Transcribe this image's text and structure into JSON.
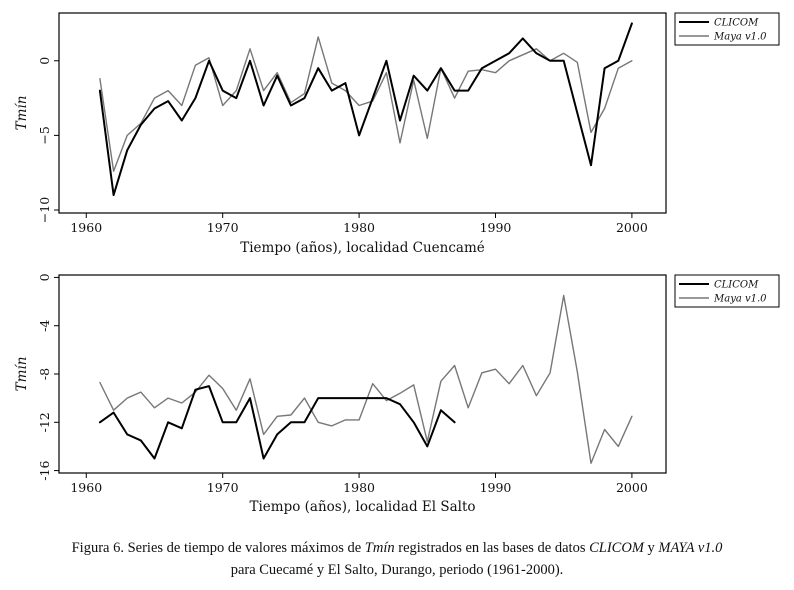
{
  "chart_data": [
    {
      "type": "line",
      "xlabel": "Tiempo (años), localidad Cuencamé",
      "ylabel": "Tmín",
      "xlim": [
        1958,
        2002.5
      ],
      "ylim": [
        -10.2,
        3.2
      ],
      "xticks": [
        1960,
        1970,
        1980,
        1990,
        2000
      ],
      "yticks": [
        -10,
        -5,
        0
      ],
      "ytick_labels": [
        "−10",
        "−5",
        "0"
      ],
      "legend_position": "top-right",
      "grid": false,
      "x": [
        1961,
        1962,
        1963,
        1964,
        1965,
        1966,
        1967,
        1968,
        1969,
        1970,
        1971,
        1972,
        1973,
        1974,
        1975,
        1976,
        1977,
        1978,
        1979,
        1980,
        1981,
        1982,
        1983,
        1984,
        1985,
        1986,
        1987,
        1988,
        1989,
        1990,
        1991,
        1992,
        1993,
        1994,
        1995,
        1996,
        1997,
        1998,
        1999,
        2000
      ],
      "series": [
        {
          "name": "CLICOM",
          "color": "#000000",
          "width": 2,
          "values": [
            -2,
            -9,
            -6,
            -4.3,
            -3.2,
            -2.7,
            -4,
            -2.5,
            0,
            -2,
            -2.5,
            0,
            -3,
            -1,
            -3,
            -2.5,
            -0.5,
            -2,
            -1.5,
            -5,
            -2.5,
            0,
            -4,
            -1,
            -2,
            -0.5,
            -2,
            -2,
            -0.5,
            0,
            0.5,
            1.5,
            0.5,
            0,
            0,
            -3.5,
            -7,
            -0.5,
            0,
            2.5
          ]
        },
        {
          "name": "Maya v1.0",
          "color": "#777777",
          "width": 1.4,
          "values": [
            -1.2,
            -7.4,
            -5,
            -4.2,
            -2.5,
            -2,
            -3,
            -0.3,
            0.2,
            -3,
            -2,
            0.8,
            -2,
            -0.8,
            -2.8,
            -2.2,
            1.6,
            -1.5,
            -2,
            -3,
            -2.7,
            -0.8,
            -5.5,
            -1.3,
            -5.2,
            -0.5,
            -2.5,
            -0.7,
            -0.6,
            -0.8,
            0,
            0.4,
            0.8,
            0,
            0.5,
            -0.1,
            -4.8,
            -3.2,
            -0.5,
            0
          ]
        }
      ]
    },
    {
      "type": "line",
      "xlabel": "Tiempo (años), localidad El Salto",
      "ylabel": "Tmín",
      "xlim": [
        1958,
        2002.5
      ],
      "ylim": [
        -16.2,
        0.2
      ],
      "xticks": [
        1960,
        1970,
        1980,
        1990,
        2000
      ],
      "yticks": [
        -16,
        -12,
        -8,
        -4,
        0
      ],
      "ytick_labels": [
        "-16",
        "-12",
        "-8",
        "-4",
        "0"
      ],
      "legend_position": "top-right",
      "grid": false,
      "series": [
        {
          "name": "CLICOM",
          "color": "#000000",
          "width": 2,
          "x": [
            1961,
            1962,
            1963,
            1964,
            1965,
            1966,
            1967,
            1968,
            1969,
            1970,
            1971,
            1972,
            1973,
            1974,
            1975,
            1976,
            1977,
            1978,
            1979,
            1980,
            1981,
            1982,
            1983,
            1984,
            1985,
            1986,
            1987
          ],
          "values": [
            -12,
            -11.2,
            -13,
            -13.5,
            -15,
            -12,
            -12.5,
            -9.3,
            -9,
            -12,
            -12,
            -10,
            -15,
            -13,
            -12,
            -12,
            -10,
            -10,
            -10,
            -10,
            -10,
            -10,
            -10.5,
            -12,
            -14,
            -11,
            -12
          ]
        },
        {
          "name": "Maya v1.0",
          "color": "#777777",
          "width": 1.4,
          "x": [
            1961,
            1962,
            1963,
            1964,
            1965,
            1966,
            1967,
            1968,
            1969,
            1970,
            1971,
            1972,
            1973,
            1974,
            1975,
            1976,
            1977,
            1978,
            1979,
            1980,
            1981,
            1982,
            1983,
            1984,
            1985,
            1986,
            1987,
            1988,
            1989,
            1990,
            1991,
            1992,
            1993,
            1994,
            1995,
            1996,
            1997,
            1998,
            1999,
            2000
          ],
          "values": [
            -8.7,
            -11,
            -10,
            -9.5,
            -10.8,
            -10,
            -10.4,
            -9.5,
            -8.1,
            -9.2,
            -11,
            -8.4,
            -13,
            -11.5,
            -11.4,
            -10,
            -12,
            -12.3,
            -11.8,
            -11.8,
            -8.8,
            -10.2,
            -9.6,
            -8.9,
            -13.6,
            -8.6,
            -7.3,
            -10.8,
            -7.9,
            -7.6,
            -8.8,
            -7.3,
            -9.8,
            -7.9,
            -1.5,
            -7.8,
            -15.4,
            -12.6,
            -14,
            -11.5
          ]
        }
      ]
    }
  ],
  "caption": {
    "line1_prefix": "Figura 6. Series de tiempo de valores máximos de ",
    "line1_var": "Tmín",
    "line1_mid": " registrados en las bases de datos ",
    "line1_db1": "CLICOM",
    "line1_y": " y ",
    "line1_db2": "MAYA v1.0",
    "line2": "para Cuecamé y El Salto, Durango, periodo (1961-2000)."
  }
}
